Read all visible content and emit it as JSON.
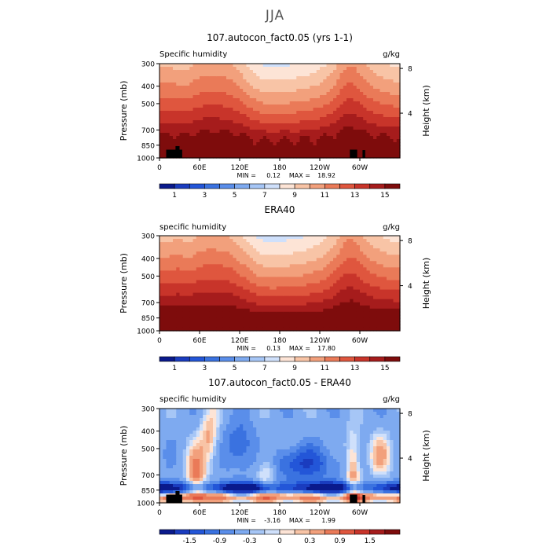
{
  "season": "JJA",
  "chart_data": [
    {
      "type": "heatmap",
      "title": "107.autocon_fact0.05 (yrs 1-1)",
      "left_label": "Specific humidity",
      "right_label": "g/kg",
      "ylabel": "Pressure (mb)",
      "y2label": "Height (km)",
      "x_ticks": [
        "0",
        "60E",
        "120E",
        "180",
        "120W",
        "60W"
      ],
      "x_tick_lon": [
        0,
        60,
        120,
        180,
        240,
        300
      ],
      "xlim": [
        0,
        360
      ],
      "y_ticks": [
        "300",
        "400",
        "500",
        "700",
        "850",
        "1000"
      ],
      "y_tick_p": [
        300,
        400,
        500,
        700,
        850,
        1000
      ],
      "ylim": [
        1000,
        300
      ],
      "y2_ticks": [
        "8",
        "4"
      ],
      "y2_tick_km": [
        8,
        4
      ],
      "min_label": "MIN =",
      "min_value": "0.12",
      "max_label": "MAX =",
      "max_value": "18.92",
      "colorbar_levels": [
        0,
        1,
        2,
        3,
        4,
        5,
        6,
        7,
        8,
        9,
        10,
        11,
        12,
        13,
        14,
        15,
        16
      ],
      "colorbar_labels": [
        "1",
        "3",
        "5",
        "7",
        "9",
        "11",
        "13",
        "15"
      ],
      "colorbar_label_levels": [
        1,
        3,
        5,
        7,
        9,
        11,
        13,
        15
      ],
      "colors": [
        "#0a1a8c",
        "#1a3cbf",
        "#2356d8",
        "#3a72e0",
        "#5a8eea",
        "#7eaaf0",
        "#a6c6f6",
        "#cfe0fb",
        "#fde4d6",
        "#f8c4a6",
        "#f2a07c",
        "#ea7a58",
        "#df563e",
        "#c8342a",
        "#a61c1c",
        "#7e0c0c"
      ],
      "land_blocks": [
        {
          "lon0": 10,
          "lon1": 34,
          "p0": 1000,
          "p1": 900
        },
        {
          "lon0": 24,
          "lon1": 30,
          "p0": 1000,
          "p1": 860
        },
        {
          "lon0": 285,
          "lon1": 296,
          "p0": 1000,
          "p1": 900
        },
        {
          "lon0": 304,
          "lon1": 308,
          "p0": 1000,
          "p1": 905
        }
      ]
    },
    {
      "type": "heatmap",
      "title": "ERA40",
      "left_label": "specific humidity",
      "right_label": "g/kg",
      "ylabel": "Pressure (mb)",
      "y2label": "Height (km)",
      "x_ticks": [
        "0",
        "60E",
        "120E",
        "180",
        "120W",
        "60W"
      ],
      "x_tick_lon": [
        0,
        60,
        120,
        180,
        240,
        300
      ],
      "xlim": [
        0,
        360
      ],
      "y_ticks": [
        "300",
        "400",
        "500",
        "700",
        "850",
        "1000"
      ],
      "y_tick_p": [
        300,
        400,
        500,
        700,
        850,
        1000
      ],
      "ylim": [
        1000,
        300
      ],
      "y2_ticks": [
        "8",
        "4"
      ],
      "y2_tick_km": [
        8,
        4
      ],
      "min_label": "MIN =",
      "min_value": "0.13",
      "max_label": "MAX =",
      "max_value": "17.80",
      "colorbar_levels": [
        0,
        1,
        2,
        3,
        4,
        5,
        6,
        7,
        8,
        9,
        10,
        11,
        12,
        13,
        14,
        15,
        16
      ],
      "colorbar_labels": [
        "1",
        "3",
        "5",
        "7",
        "9",
        "11",
        "13",
        "15"
      ],
      "colorbar_label_levels": [
        1,
        3,
        5,
        7,
        9,
        11,
        13,
        15
      ],
      "colors": [
        "#0a1a8c",
        "#1a3cbf",
        "#2356d8",
        "#3a72e0",
        "#5a8eea",
        "#7eaaf0",
        "#a6c6f6",
        "#cfe0fb",
        "#fde4d6",
        "#f8c4a6",
        "#f2a07c",
        "#ea7a58",
        "#df563e",
        "#c8342a",
        "#a61c1c",
        "#7e0c0c"
      ],
      "land_blocks": []
    },
    {
      "type": "heatmap",
      "title": "107.autocon_fact0.05 - ERA40",
      "left_label": "specific humidity",
      "right_label": "g/kg",
      "ylabel": "Pressure (mb)",
      "y2label": "Height (km)",
      "x_ticks": [
        "0",
        "60E",
        "120E",
        "180",
        "120W",
        "60W"
      ],
      "x_tick_lon": [
        0,
        60,
        120,
        180,
        240,
        300
      ],
      "xlim": [
        0,
        360
      ],
      "y_ticks": [
        "300",
        "400",
        "500",
        "700",
        "850",
        "1000"
      ],
      "y_tick_p": [
        300,
        400,
        500,
        700,
        850,
        1000
      ],
      "ylim": [
        1000,
        300
      ],
      "y2_ticks": [
        "8",
        "4"
      ],
      "y2_tick_km": [
        8,
        4
      ],
      "min_label": "MIN =",
      "min_value": "-3.16",
      "max_label": "MAX =",
      "max_value": "1.99",
      "colorbar_levels": [
        -2.1,
        -1.8,
        -1.5,
        -1.2,
        -0.9,
        -0.6,
        -0.3,
        -0.15,
        0,
        0.15,
        0.3,
        0.6,
        0.9,
        1.2,
        1.5,
        1.8,
        2.1
      ],
      "colorbar_labels": [
        "-1.5",
        "-0.9",
        "-0.3",
        "0",
        "0.3",
        "0.9",
        "1.5"
      ],
      "colorbar_label_levels": [
        -1.5,
        -0.9,
        -0.3,
        0,
        0.3,
        0.9,
        1.5
      ],
      "colors": [
        "#0a1a8c",
        "#1a3cbf",
        "#2356d8",
        "#3a72e0",
        "#5a8eea",
        "#7eaaf0",
        "#a6c6f6",
        "#cfe0fb",
        "#fde4d6",
        "#f8c4a6",
        "#f2a07c",
        "#ea7a58",
        "#df563e",
        "#c8342a",
        "#a61c1c",
        "#7e0c0c"
      ],
      "land_blocks": [
        {
          "lon0": 10,
          "lon1": 34,
          "p0": 1000,
          "p1": 900
        },
        {
          "lon0": 24,
          "lon1": 30,
          "p0": 1000,
          "p1": 860
        },
        {
          "lon0": 285,
          "lon1": 296,
          "p0": 1000,
          "p1": 900
        },
        {
          "lon0": 304,
          "lon1": 308,
          "p0": 1000,
          "p1": 905
        }
      ]
    }
  ]
}
